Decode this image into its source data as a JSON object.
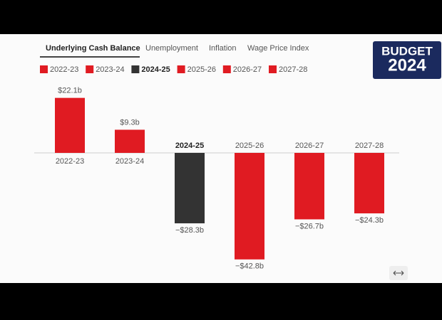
{
  "tabs": [
    "Underlying Cash Balance",
    "Unemployment",
    "Inflation",
    "Wage Price Index"
  ],
  "active_tab": "Underlying Cash Balance",
  "logo": {
    "line1": "BUDGET",
    "line2": "2024"
  },
  "chart_data": {
    "type": "bar",
    "categories": [
      "2022-23",
      "2023-24",
      "2024-25",
      "2025-26",
      "2026-27",
      "2027-28"
    ],
    "values": [
      22.1,
      9.3,
      -28.3,
      -42.8,
      -26.7,
      -24.3
    ],
    "value_labels": [
      "$22.1b",
      "$9.3b",
      "−$28.3b",
      "−$42.8b",
      "−$26.7b",
      "−$24.3b"
    ],
    "colors": [
      "#e01b22",
      "#e01b22",
      "#333333",
      "#e01b22",
      "#e01b22",
      "#e01b22"
    ],
    "selected": "2024-25"
  }
}
